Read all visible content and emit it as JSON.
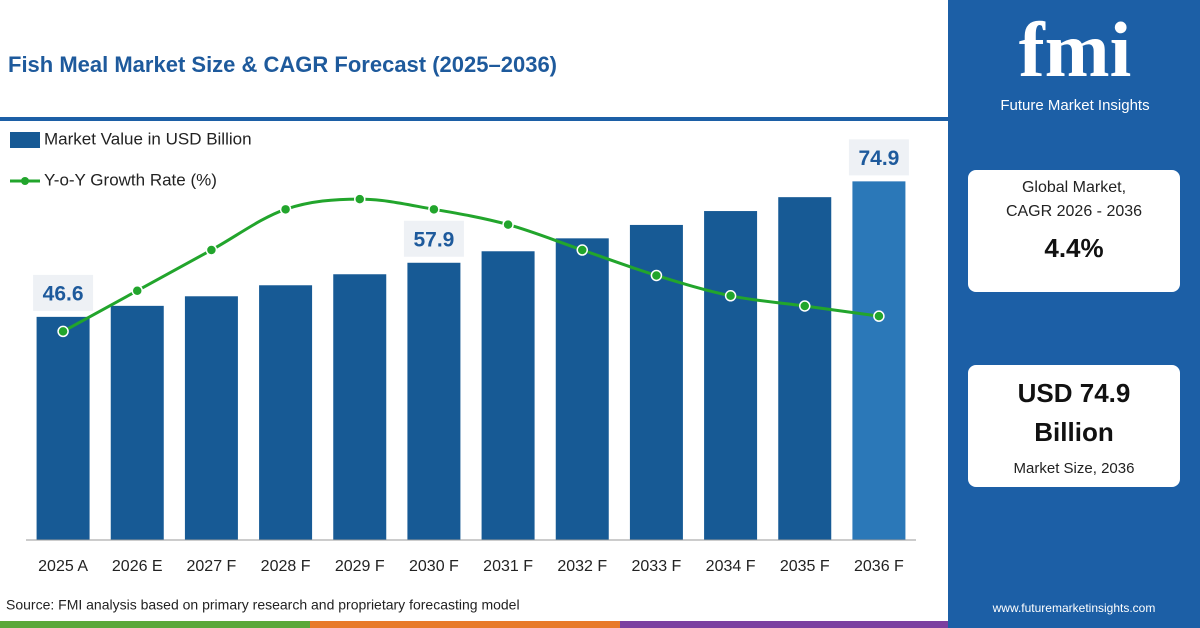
{
  "chart_data": {
    "type": "bar_line",
    "title": "Fish Meal Market Size & CAGR Forecast (2025–2036)",
    "categories": [
      "2025 A",
      "2026 E",
      "2027 F",
      "2028 F",
      "2029 F",
      "2030 F",
      "2031 F",
      "2032 F",
      "2033 F",
      "2034 F",
      "2035 F",
      "2036 F"
    ],
    "series": [
      {
        "name": "Market Value in USD Billion",
        "type": "bar",
        "color": "#175a95",
        "highlight_color": "#2b78b8",
        "values": [
          46.6,
          48.9,
          50.9,
          53.2,
          55.5,
          57.9,
          60.3,
          63.0,
          65.8,
          68.7,
          71.6,
          74.9
        ],
        "value_labels": [
          "46.6",
          null,
          null,
          null,
          null,
          "57.9",
          null,
          null,
          null,
          null,
          null,
          "74.9"
        ]
      },
      {
        "name": "Y-o-Y Growth Rate (%)",
        "type": "line",
        "axis": "y2",
        "color": "#22a52c",
        "values": [
          4.1,
          4.9,
          5.7,
          6.5,
          6.7,
          6.5,
          6.2,
          5.7,
          5.2,
          4.8,
          4.6,
          4.4
        ]
      }
    ],
    "ylim": [
      0,
      85
    ],
    "y2lim": [
      0,
      8
    ],
    "grid": false,
    "legend": "top-left"
  },
  "source": "Source: FMI analysis based on primary research and proprietary forecasting model",
  "sidebar": {
    "logo": "fmi",
    "brand": "Future Market Insights",
    "card1": {
      "line1": "Global Market,",
      "line2": "CAGR 2026 - 2036",
      "value": "4.4%"
    },
    "card2": {
      "line1": "USD 74.9",
      "line2": "Billion",
      "caption": "Market Size, 2036"
    },
    "website": "www.futuremarketinsights.com"
  }
}
